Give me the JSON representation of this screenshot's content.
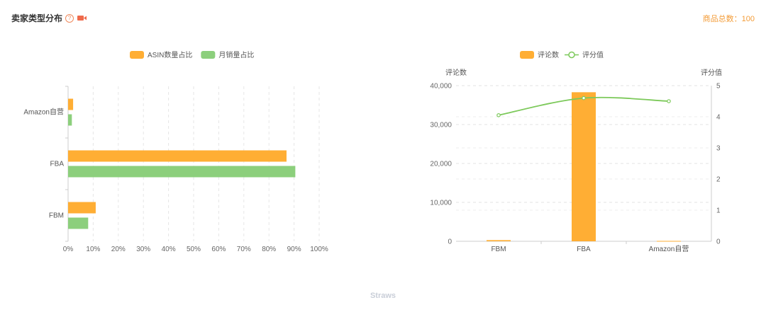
{
  "header": {
    "title": "卖家类型分布",
    "help_symbol": "?",
    "video_icon": "video-icon",
    "total_label": "商品总数：",
    "total_value": "100"
  },
  "footer": {
    "watermark": "Straws"
  },
  "colors": {
    "orange": "#FFAE34",
    "green": "#8CCF7C",
    "line_green": "#7CC95A",
    "accent": "#F39C38",
    "icon_red": "#EF6A4B"
  },
  "chart_data": [
    {
      "type": "bar",
      "orientation": "horizontal",
      "categories": [
        "FBM",
        "FBA",
        "Amazon自营"
      ],
      "series": [
        {
          "name": "ASIN数量占比",
          "color": "#FFAE34",
          "values": [
            11,
            87,
            2
          ]
        },
        {
          "name": "月销量占比",
          "color": "#8CCF7C",
          "values": [
            8,
            90.5,
            1.5
          ]
        }
      ],
      "xticks": [
        "0%",
        "10%",
        "20%",
        "30%",
        "40%",
        "50%",
        "60%",
        "70%",
        "80%",
        "90%",
        "100%"
      ],
      "xlim": [
        0,
        100
      ],
      "legend": "top-center",
      "grid": true
    },
    {
      "type": "bar",
      "categories": [
        "FBM",
        "FBA",
        "Amazon自营"
      ],
      "series": [
        {
          "name": "评论数",
          "type": "bar",
          "color": "#FFAE34",
          "axis": "left",
          "values": [
            300,
            38300,
            100
          ]
        },
        {
          "name": "评分值",
          "type": "line",
          "color": "#7CC95A",
          "axis": "right",
          "values": [
            4.05,
            4.6,
            4.5
          ]
        }
      ],
      "ylabel": "评论数",
      "y2label": "评分值",
      "ylim": [
        0,
        40000
      ],
      "y2lim": [
        0,
        5
      ],
      "yticks": [
        "0",
        "10,000",
        "20,000",
        "30,000",
        "40,000"
      ],
      "y2ticks": [
        "0",
        "1",
        "2",
        "3",
        "4",
        "5"
      ],
      "legend": "top-center",
      "grid": true
    }
  ]
}
